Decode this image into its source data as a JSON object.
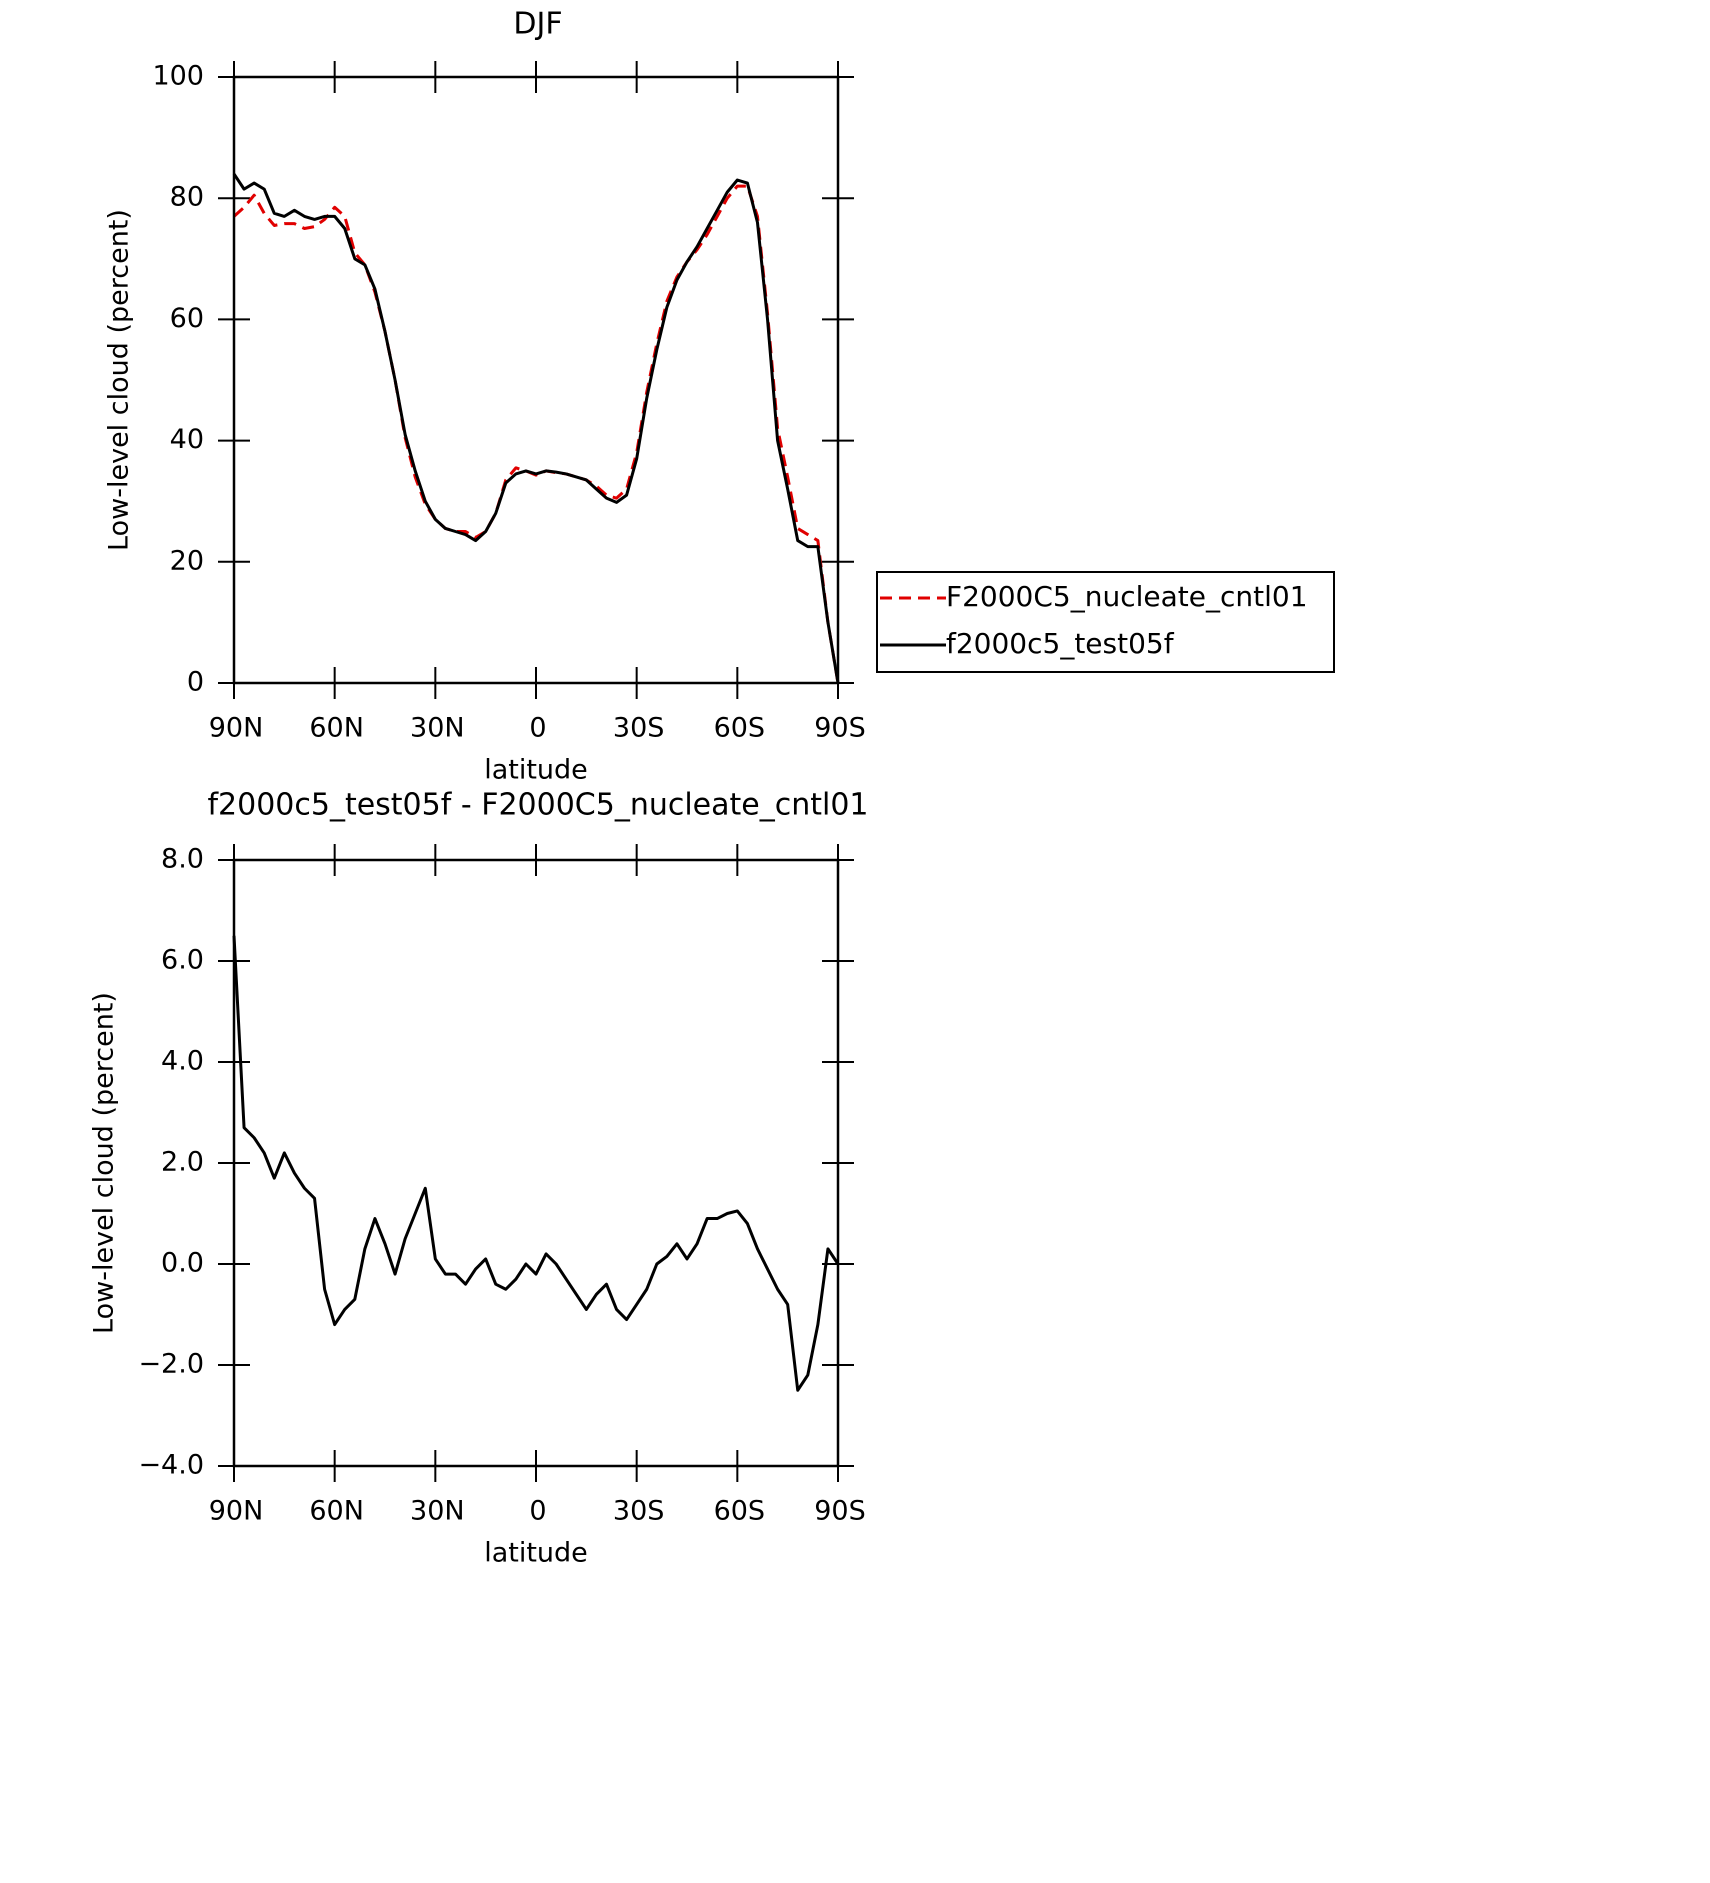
{
  "chart_data": [
    {
      "type": "line",
      "title": "DJF",
      "xlabel": "latitude",
      "ylabel": "Low-level cloud (percent)",
      "x": [
        90,
        87,
        84,
        81,
        78,
        75,
        72,
        69,
        66,
        63,
        60,
        57,
        54,
        51,
        48,
        45,
        42,
        39,
        36,
        33,
        30,
        27,
        24,
        21,
        18,
        15,
        12,
        9,
        6,
        3,
        0,
        -3,
        -6,
        -9,
        -12,
        -15,
        -18,
        -21,
        -24,
        -27,
        -30,
        -33,
        -36,
        -39,
        -42,
        -45,
        -48,
        -51,
        -54,
        -57,
        -60,
        -63,
        -66,
        -69,
        -72,
        -75,
        -78,
        -81,
        -84,
        -87,
        -90
      ],
      "series": [
        {
          "name": "F2000C5_nucleate_cntl01",
          "color": "#e00000",
          "line_style": "dashed",
          "values": [
            77,
            78.5,
            80.5,
            77.5,
            75.5,
            75.8,
            75.8,
            75,
            75.3,
            76.5,
            78.5,
            77,
            71,
            69,
            64.5,
            58,
            50,
            40.5,
            34,
            29.5,
            27,
            25.5,
            25,
            25,
            24,
            25,
            28,
            33.5,
            35.5,
            35,
            34.3,
            35,
            34.7,
            34.5,
            34,
            33.5,
            32.5,
            31,
            30.5,
            32,
            38,
            48,
            56,
            63,
            67,
            69.5,
            71.5,
            74,
            77,
            80,
            82,
            82,
            77,
            61,
            42,
            34,
            25.5,
            24.5,
            23.5,
            10,
            0
          ]
        },
        {
          "name": "f2000c5_test05f",
          "color": "#000000",
          "line_style": "solid",
          "values": [
            84,
            81.5,
            82.5,
            81.5,
            77.5,
            77,
            78,
            77,
            76.5,
            77,
            77,
            75,
            70,
            69,
            65,
            58,
            50,
            41,
            35,
            30,
            27,
            25.5,
            25,
            24.5,
            23.5,
            25,
            28,
            33,
            34.5,
            35,
            34.5,
            35,
            34.8,
            34.5,
            34,
            33.5,
            32,
            30.5,
            29.8,
            31,
            37,
            47,
            55,
            62,
            66.5,
            69.5,
            72,
            75,
            78,
            81,
            83,
            82.5,
            76,
            60,
            40,
            32,
            23.5,
            22.5,
            22.5,
            10,
            0
          ]
        }
      ],
      "xlim": [
        90,
        -90
      ],
      "xticks": [
        {
          "value": 90,
          "label": "90N"
        },
        {
          "value": 60,
          "label": "60N"
        },
        {
          "value": 30,
          "label": "30N"
        },
        0,
        {
          "value": -30,
          "label": "30S"
        },
        {
          "value": -60,
          "label": "60S"
        },
        {
          "value": -90,
          "label": "90S"
        }
      ],
      "ylim": [
        0,
        100
      ],
      "yticks": [
        0,
        20,
        40,
        60,
        80,
        100
      ]
    },
    {
      "type": "line",
      "title": "f2000c5_test05f - F2000C5_nucleate_cntl01",
      "xlabel": "latitude",
      "ylabel": "Low-level cloud (percent)",
      "x": [
        90,
        87,
        84,
        81,
        78,
        75,
        72,
        69,
        66,
        63,
        60,
        57,
        54,
        51,
        48,
        45,
        42,
        39,
        36,
        33,
        30,
        27,
        24,
        21,
        18,
        15,
        12,
        9,
        6,
        3,
        0,
        -3,
        -6,
        -9,
        -12,
        -15,
        -18,
        -21,
        -24,
        -27,
        -30,
        -33,
        -36,
        -39,
        -42,
        -45,
        -48,
        -51,
        -54,
        -57,
        -60,
        -63,
        -66,
        -69,
        -72,
        -75,
        -78,
        -81,
        -84,
        -87,
        -90
      ],
      "series": [
        {
          "color": "#000000",
          "line_style": "solid",
          "values": [
            6.5,
            2.7,
            2.5,
            2.2,
            1.7,
            2.2,
            1.8,
            1.5,
            1.3,
            -0.5,
            -1.2,
            -0.9,
            -0.7,
            0.3,
            0.9,
            0.4,
            -0.2,
            0.5,
            1.0,
            1.5,
            0.1,
            -0.2,
            -0.2,
            -0.4,
            -0.1,
            0.1,
            -0.4,
            -0.5,
            -0.3,
            0.0,
            -0.2,
            0.2,
            0.0,
            -0.3,
            -0.6,
            -0.9,
            -0.6,
            -0.4,
            -0.9,
            -1.1,
            -0.8,
            -0.5,
            0.0,
            0.15,
            0.4,
            0.1,
            0.4,
            0.9,
            0.9,
            1.0,
            1.05,
            0.8,
            0.3,
            -0.1,
            -0.5,
            -0.8,
            -2.5,
            -2.2,
            -1.2,
            0.3,
            0
          ]
        }
      ],
      "xlim": [
        90,
        -90
      ],
      "xticks": [
        {
          "value": 90,
          "label": "90N"
        },
        {
          "value": 60,
          "label": "60N"
        },
        {
          "value": 30,
          "label": "30N"
        },
        0,
        {
          "value": -30,
          "label": "30S"
        },
        {
          "value": -60,
          "label": "60S"
        },
        {
          "value": -90,
          "label": "90S"
        }
      ],
      "ylim": [
        -4,
        8
      ],
      "yticks": [
        {
          "value": -4,
          "label": "−4.0"
        },
        {
          "value": -2,
          "label": "−2.0"
        },
        {
          "value": 0,
          "label": "0.0"
        },
        {
          "value": 2,
          "label": "2.0"
        },
        {
          "value": 4,
          "label": "4.0"
        },
        {
          "value": 6,
          "label": "6.0"
        },
        {
          "value": 8,
          "label": "8.0"
        }
      ]
    }
  ]
}
